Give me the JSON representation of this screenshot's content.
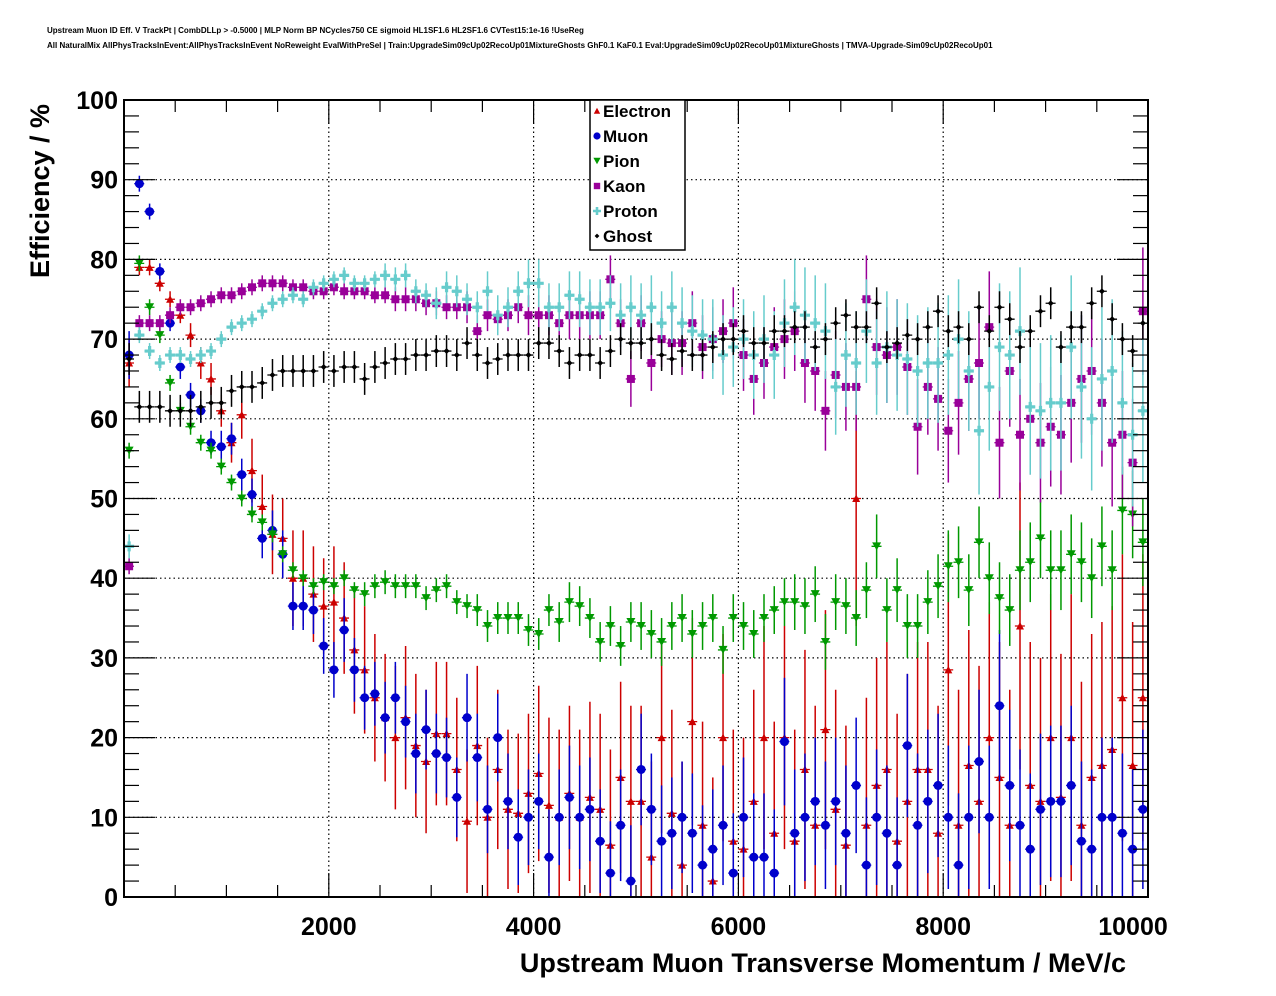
{
  "header": {
    "title_line1": "Upstream Muon ID Eff. V TrackPt | CombDLLp > -0.5000 | MLP Norm BP NCycles750 CE sigmoid HL1SF1.6 HL2SF1.6 CVTest15:1e-16 !UseReg",
    "title_line2": "All NaturalMix AllPhysTracksInEvent:AllPhysTracksInEvent NoReweight EvalWithPreSel | Train:UpgradeSim09cUp02RecoUp01MixtureGhosts GhF0.1 KaF0.1 Eval:UpgradeSim09cUp02RecoUp01MixtureGhosts | TMVA-Upgrade-Sim09cUp02RecoUp01"
  },
  "chart_data": {
    "type": "scatter",
    "title": "Upstream Muon ID Eff. V TrackPt",
    "xlabel": "Upstream Muon Transverse Momentum / MeV/c",
    "ylabel": "Efficiency / %",
    "xlim": [
      0,
      10000
    ],
    "ylim": [
      0,
      100
    ],
    "grid": true,
    "legend_position": "top-center",
    "x_ticks": [
      "2000",
      "4000",
      "6000",
      "8000",
      "10000"
    ],
    "x_tick_values": [
      2000,
      4000,
      6000,
      8000,
      10000
    ],
    "y_ticks": [
      "0",
      "10",
      "20",
      "30",
      "40",
      "50",
      "60",
      "70",
      "80",
      "90",
      "100"
    ],
    "y_tick_values": [
      0,
      10,
      20,
      30,
      40,
      50,
      60,
      70,
      80,
      90,
      100
    ],
    "x": [
      50,
      150,
      250,
      350,
      450,
      550,
      650,
      750,
      850,
      950,
      1050,
      1150,
      1250,
      1350,
      1450,
      1550,
      1650,
      1750,
      1850,
      1950,
      2050,
      2150,
      2250,
      2350,
      2450,
      2550,
      2650,
      2750,
      2850,
      2950,
      3050,
      3150,
      3250,
      3350,
      3450,
      3550,
      3650,
      3750,
      3850,
      3950,
      4050,
      4150,
      4250,
      4350,
      4450,
      4550,
      4650,
      4750,
      4850,
      4950,
      5050,
      5150,
      5250,
      5350,
      5450,
      5550,
      5650,
      5750,
      5850,
      5950,
      6050,
      6150,
      6250,
      6350,
      6450,
      6550,
      6650,
      6750,
      6850,
      6950,
      7050,
      7150,
      7250,
      7350,
      7450,
      7550,
      7650,
      7750,
      7850,
      7950,
      8050,
      8150,
      8250,
      8350,
      8450,
      8550,
      8650,
      8750,
      8850,
      8950,
      9050,
      9150,
      9250,
      9350,
      9450,
      9550,
      9650,
      9750,
      9850,
      9950
    ],
    "series": [
      {
        "name": "Electron",
        "color": "#cc0000",
        "marker": "triangle-up",
        "values": [
          67,
          79,
          79,
          77,
          75,
          73,
          70.5,
          67,
          65,
          61,
          57,
          60.5,
          53.5,
          49,
          45.5,
          45,
          40,
          40,
          38,
          36.5,
          37,
          35,
          31,
          28.5,
          25,
          22.5,
          20,
          22.5,
          19,
          17,
          20.5,
          20.5,
          16,
          9.5,
          19,
          10,
          16,
          11,
          10.5,
          13,
          15.5,
          11.5,
          10,
          13,
          10,
          12.5,
          11,
          6.5,
          15,
          12,
          12,
          5,
          20,
          10.5,
          4,
          22,
          9,
          2,
          20,
          7,
          6,
          12,
          20,
          8,
          20,
          7,
          16,
          9,
          21,
          11,
          6.5,
          50,
          9,
          14,
          16,
          7,
          12,
          16,
          16,
          8,
          28.5,
          9,
          16.5,
          12,
          20,
          15,
          9,
          34,
          14,
          12,
          20,
          12.5,
          20,
          9,
          15,
          16.5,
          18.5,
          25,
          16.5,
          25
        ],
        "errors": [
          3,
          1,
          1,
          1,
          1,
          1,
          1.5,
          2,
          2,
          2,
          2.5,
          3,
          4,
          4,
          5,
          5,
          6,
          6,
          6,
          6,
          7,
          7,
          8,
          8,
          8,
          8,
          9,
          9,
          9,
          9,
          9,
          9,
          9,
          9,
          10,
          10,
          10,
          10,
          10,
          10,
          11,
          11,
          11,
          11,
          11,
          12,
          12,
          12,
          12,
          12,
          12,
          12,
          12,
          13,
          13,
          13,
          13,
          13,
          13,
          14,
          14,
          14,
          14,
          14,
          14,
          14,
          15,
          15,
          15,
          15,
          15,
          16,
          16,
          16,
          16,
          16,
          16,
          16,
          16,
          16,
          17,
          17,
          17,
          17,
          17,
          17,
          17,
          18,
          18,
          18,
          18,
          18,
          18,
          18,
          18,
          18,
          18,
          18,
          18,
          18
        ]
      },
      {
        "name": "Muon",
        "color": "#0000cc",
        "marker": "circle",
        "values": [
          68,
          89.5,
          86,
          78.5,
          72,
          66.5,
          63,
          61,
          57,
          56.5,
          57.5,
          53,
          50.5,
          45,
          46,
          43,
          36.5,
          36.5,
          36,
          31.5,
          28.5,
          33.5,
          28.5,
          25,
          25.5,
          22.5,
          25,
          22,
          18,
          21,
          18,
          17.5,
          12.5,
          22.5,
          17.5,
          11,
          20,
          12,
          7.5,
          10,
          12,
          5,
          10,
          12.5,
          10,
          11,
          7,
          3,
          9,
          2,
          16,
          11,
          7,
          8,
          10,
          8,
          4,
          6,
          9,
          3,
          10,
          5,
          5,
          3,
          19.5,
          8,
          10,
          12,
          9,
          12,
          8,
          14,
          4,
          10,
          8,
          4,
          19,
          9,
          12,
          14,
          10,
          4,
          10,
          17,
          10,
          24,
          14,
          9,
          6,
          11,
          12,
          12,
          14,
          7,
          6,
          10,
          10,
          8,
          6,
          11
        ],
        "errors": [
          3,
          1,
          1,
          1,
          1,
          1.5,
          1.5,
          1.5,
          1.5,
          2,
          2,
          2,
          2,
          2.5,
          2.5,
          3,
          3,
          3,
          3,
          3.5,
          3.5,
          4,
          4,
          4,
          4,
          4.5,
          4.5,
          4.5,
          5,
          5,
          5,
          5,
          5,
          5.5,
          5.5,
          5.5,
          5.5,
          6,
          6,
          6,
          6,
          6,
          6,
          6.5,
          6.5,
          6.5,
          6.5,
          6.5,
          7,
          7,
          7,
          7,
          7,
          7,
          7,
          7.5,
          7.5,
          7.5,
          7.5,
          7.5,
          7.5,
          8,
          8,
          8,
          8,
          8,
          8,
          8,
          8,
          8,
          8.5,
          8.5,
          8.5,
          8.5,
          8.5,
          8.5,
          9,
          9,
          9,
          9,
          9,
          9,
          9,
          9,
          9,
          9.5,
          9.5,
          9.5,
          9.5,
          9.5,
          9.5,
          9.5,
          10,
          10,
          10,
          10,
          10,
          10,
          10,
          10
        ]
      },
      {
        "name": "Pion",
        "color": "#009900",
        "marker": "triangle-down",
        "values": [
          56,
          79.5,
          74,
          70.5,
          64.5,
          61,
          59,
          57,
          56,
          54,
          52,
          50,
          48,
          47,
          45.5,
          43,
          41,
          40,
          39,
          39.5,
          39,
          40,
          38.5,
          38,
          39,
          39.5,
          39,
          39,
          39,
          37.5,
          38.5,
          39,
          37,
          36.5,
          36,
          34,
          35,
          35,
          35,
          33.5,
          33,
          36,
          34.5,
          37,
          36.5,
          35,
          32,
          34,
          31.5,
          34.5,
          34,
          33,
          32,
          34,
          35,
          33,
          34,
          35,
          31,
          35,
          34,
          33,
          35,
          36,
          37,
          37,
          36.5,
          38,
          32,
          37,
          36.5,
          35,
          38.5,
          44,
          36,
          38.5,
          34,
          34,
          37,
          39,
          41.5,
          42,
          38.5,
          44.5,
          40,
          37.5,
          36,
          41,
          42,
          45,
          41,
          41,
          43,
          42,
          40,
          44,
          41,
          48.5,
          48,
          44.5
        ],
        "errors": [
          1,
          1,
          1,
          1,
          1,
          1,
          1,
          1,
          1,
          1,
          1,
          1,
          1,
          1,
          1,
          1,
          1,
          1,
          1,
          1,
          1,
          1,
          1,
          1.5,
          1.5,
          1.5,
          1.5,
          1.5,
          1.5,
          1.5,
          1.5,
          1.5,
          1.5,
          1.5,
          2,
          2,
          2,
          2,
          2,
          2,
          2,
          2,
          2.5,
          2.5,
          2.5,
          2.5,
          2.5,
          2.5,
          2.5,
          2.5,
          3,
          3,
          3,
          3,
          3,
          3,
          3,
          3,
          3,
          3,
          3,
          3,
          3,
          3,
          3,
          3.5,
          3.5,
          3.5,
          3.5,
          3.5,
          3.5,
          3.5,
          3.5,
          4,
          4,
          4,
          4,
          4,
          4,
          4,
          4.5,
          4.5,
          4.5,
          4.5,
          4.5,
          4.5,
          4.5,
          5,
          5,
          5,
          5,
          5,
          5,
          5,
          5,
          5,
          5,
          5.5,
          5.5,
          5.5
        ]
      },
      {
        "name": "Kaon",
        "color": "#990099",
        "marker": "square",
        "values": [
          41.5,
          72,
          72,
          72,
          73,
          74,
          74,
          74.5,
          75,
          75.5,
          75.5,
          76,
          76.5,
          77,
          77,
          77,
          76.5,
          76.5,
          76,
          76,
          76.5,
          76,
          76,
          76,
          75.5,
          75.5,
          75,
          75,
          75,
          74.5,
          74.5,
          74,
          74,
          74,
          71,
          73,
          72.5,
          73,
          74,
          73,
          73,
          73,
          72,
          73,
          73,
          73,
          73,
          77.5,
          72,
          65,
          72,
          67,
          70,
          69.5,
          69.5,
          72,
          69,
          70,
          71,
          72,
          68,
          65,
          67,
          69,
          70,
          71,
          67,
          66,
          61,
          65.5,
          64,
          64,
          75,
          69,
          68,
          69,
          66.5,
          59,
          64,
          62.5,
          58.5,
          62,
          65,
          67,
          71.5,
          57,
          66,
          58,
          60,
          57,
          59,
          58,
          62,
          65,
          66,
          62,
          57,
          58,
          54.5,
          73.5
        ],
        "errors": [
          1,
          1,
          1,
          1,
          1,
          1,
          1,
          1,
          1,
          1,
          1,
          1,
          1,
          1,
          1,
          1,
          1,
          1,
          1,
          1,
          1,
          1,
          1,
          1,
          1,
          1,
          1.5,
          1.5,
          1.5,
          1.5,
          1.5,
          1.5,
          1.5,
          2,
          2,
          2,
          2,
          2,
          2,
          2.5,
          2.5,
          2.5,
          2.5,
          3,
          3,
          3,
          3,
          3,
          3,
          3.5,
          3.5,
          3.5,
          3.5,
          4,
          4,
          4,
          4,
          4,
          4,
          4.5,
          4.5,
          4.5,
          4.5,
          5,
          5,
          5,
          5,
          5,
          5,
          5.5,
          5.5,
          5.5,
          5.5,
          6,
          6,
          6,
          6,
          6,
          6,
          6.5,
          6.5,
          6.5,
          6.5,
          7,
          7,
          7,
          7,
          7,
          7,
          7.5,
          7.5,
          7.5,
          7.5,
          8,
          8,
          8,
          8,
          8,
          8,
          8
        ]
      },
      {
        "name": "Proton",
        "color": "#66cccc",
        "marker": "cross",
        "values": [
          44,
          70.5,
          68.5,
          67,
          68,
          68,
          67.5,
          68,
          68.5,
          70,
          71.5,
          72,
          72.5,
          73.5,
          74.5,
          75,
          75.5,
          75,
          76.5,
          77,
          77.5,
          78,
          77,
          77,
          77.5,
          78,
          77.5,
          78,
          76,
          75.5,
          74.5,
          76.5,
          76,
          75,
          74,
          76,
          73,
          74,
          76,
          77,
          77,
          74,
          74,
          75.5,
          75,
          74,
          74,
          74.5,
          73,
          74,
          73,
          74,
          72,
          74,
          72,
          71,
          70.5,
          70,
          68,
          69,
          70,
          68,
          70,
          68,
          72,
          74,
          73,
          72,
          71,
          64,
          68,
          67,
          71,
          67,
          69,
          68,
          67.5,
          66,
          67,
          67,
          68,
          70,
          66,
          58.5,
          64,
          69,
          68,
          71,
          61.5,
          61,
          62,
          62,
          69,
          64,
          60,
          65,
          66,
          62,
          58,
          61
        ],
        "errors": [
          1.5,
          1,
          1,
          1,
          1,
          1,
          1,
          1,
          1,
          1,
          1,
          1,
          1,
          1,
          1,
          1,
          1,
          1,
          1,
          1,
          1,
          1,
          1,
          1,
          1,
          1.5,
          1.5,
          1.5,
          1.5,
          1.5,
          2,
          2,
          2,
          2,
          2,
          2.5,
          2.5,
          2.5,
          2.5,
          3,
          3,
          3,
          3,
          3,
          3.5,
          3.5,
          3.5,
          3.5,
          4,
          4,
          4,
          4,
          4,
          4.5,
          4.5,
          4.5,
          4.5,
          5,
          5,
          5,
          5,
          5.5,
          5.5,
          5.5,
          5.5,
          6,
          6,
          6,
          6,
          6,
          6.5,
          6.5,
          6.5,
          6.5,
          7,
          7,
          7,
          7,
          7,
          7.5,
          7.5,
          7.5,
          7.5,
          8,
          8,
          8,
          8,
          8,
          8.5,
          8.5,
          8.5,
          8.5,
          9,
          9,
          9,
          9,
          9,
          9,
          9,
          9
        ]
      },
      {
        "name": "Ghost",
        "color": "#000000",
        "marker": "diamond",
        "values": [
          67.5,
          61.5,
          61.5,
          61.5,
          61,
          61,
          61,
          61.5,
          62,
          62,
          63.5,
          64,
          64,
          64.5,
          65.5,
          66,
          66,
          66,
          66,
          66.5,
          66,
          66.5,
          66.5,
          65,
          66.5,
          67,
          67.5,
          67.5,
          68,
          68,
          68.5,
          68.5,
          68,
          69.5,
          68,
          67,
          67.5,
          68,
          68,
          68,
          69.5,
          69.5,
          68.5,
          67,
          68,
          68,
          67,
          68.5,
          70,
          69.5,
          69.5,
          70,
          68,
          67.5,
          68.5,
          68,
          68,
          69,
          70,
          70,
          71,
          69.5,
          69.5,
          71,
          71,
          71.5,
          71.5,
          69,
          70,
          72,
          73,
          71.5,
          71.5,
          74.5,
          69,
          69.5,
          70.5,
          70,
          71.5,
          73.5,
          71,
          71.5,
          70,
          74,
          71,
          74,
          72.5,
          69,
          71,
          73.5,
          74.5,
          69,
          71.5,
          71.5,
          74.5,
          76,
          72.5,
          70,
          68.5,
          72
        ]
      }
    ]
  }
}
